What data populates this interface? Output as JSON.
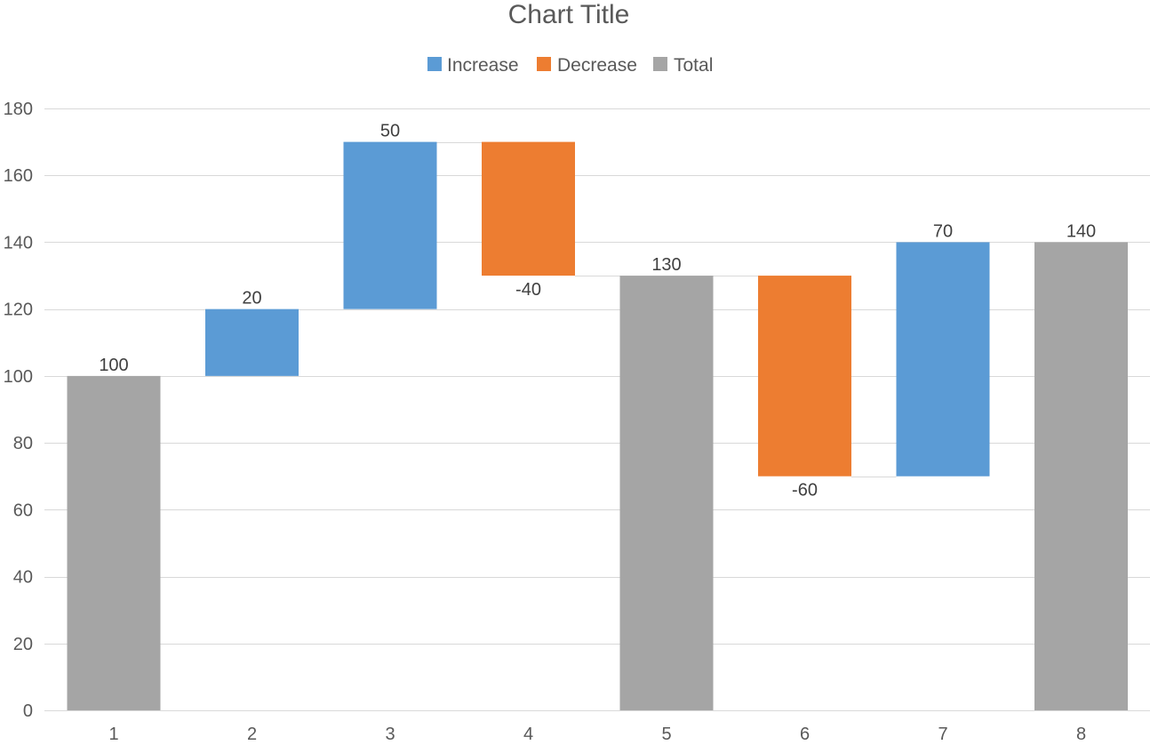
{
  "chart_data": {
    "type": "waterfall",
    "title": "Chart Title",
    "categories": [
      "1",
      "2",
      "3",
      "4",
      "5",
      "6",
      "7",
      "8"
    ],
    "values": [
      100,
      20,
      50,
      -40,
      130,
      -60,
      70,
      140
    ],
    "kinds": [
      "total",
      "increase",
      "increase",
      "decrease",
      "total",
      "decrease",
      "increase",
      "total"
    ],
    "data_labels": [
      "100",
      "20",
      "50",
      "-40",
      "130",
      "-60",
      "70",
      "140"
    ],
    "ylim": [
      0,
      180
    ],
    "y_ticks": [
      "0",
      "20",
      "40",
      "60",
      "80",
      "100",
      "120",
      "140",
      "160",
      "180"
    ],
    "y_tick_values": [
      0,
      20,
      40,
      60,
      80,
      100,
      120,
      140,
      160,
      180
    ],
    "xlabel": "",
    "ylabel": "",
    "grid": true,
    "legend": {
      "position": "top",
      "entries": [
        {
          "key": "increase",
          "label": "Increase",
          "color": "#5b9bd5"
        },
        {
          "key": "decrease",
          "label": "Decrease",
          "color": "#ed7d31"
        },
        {
          "key": "total",
          "label": "Total",
          "color": "#a5a5a5"
        }
      ]
    },
    "colors": {
      "increase": "#5b9bd5",
      "decrease": "#ed7d31",
      "total": "#a5a5a5"
    }
  }
}
